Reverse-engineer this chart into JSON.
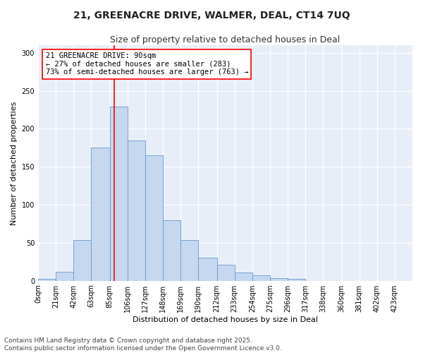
{
  "title_line1": "21, GREENACRE DRIVE, WALMER, DEAL, CT14 7UQ",
  "title_line2": "Size of property relative to detached houses in Deal",
  "xlabel": "Distribution of detached houses by size in Deal",
  "ylabel": "Number of detached properties",
  "bar_values": [
    2,
    12,
    54,
    175,
    229,
    185,
    165,
    80,
    54,
    30,
    21,
    11,
    7,
    3,
    2,
    0,
    0,
    0,
    0,
    0,
    0
  ],
  "bin_edges": [
    0,
    21,
    42,
    63,
    85,
    106,
    127,
    148,
    169,
    190,
    212,
    233,
    254,
    275,
    296,
    317,
    338,
    360,
    381,
    402,
    423,
    444
  ],
  "tick_labels": [
    "0sqm",
    "21sqm",
    "42sqm",
    "63sqm",
    "85sqm",
    "106sqm",
    "127sqm",
    "148sqm",
    "169sqm",
    "190sqm",
    "212sqm",
    "233sqm",
    "254sqm",
    "275sqm",
    "296sqm",
    "317sqm",
    "338sqm",
    "360sqm",
    "381sqm",
    "402sqm",
    "423sqm"
  ],
  "bar_color": "#c5d8f0",
  "bar_edge_color": "#6699cc",
  "vline_color": "red",
  "vline_x": 90,
  "annotation_title": "21 GREENACRE DRIVE: 90sqm",
  "annotation_line2": "← 27% of detached houses are smaller (283)",
  "annotation_line3": "73% of semi-detached houses are larger (763) →",
  "background_color": "#e8eef8",
  "grid_color": "white",
  "yticks": [
    0,
    50,
    100,
    150,
    200,
    250,
    300
  ],
  "ylim": [
    0,
    310
  ],
  "footer_line1": "Contains HM Land Registry data © Crown copyright and database right 2025.",
  "footer_line2": "Contains public sector information licensed under the Open Government Licence v3.0.",
  "title_fontsize": 10,
  "subtitle_fontsize": 9,
  "axis_label_fontsize": 8,
  "tick_fontsize": 7,
  "annotation_fontsize": 7.5,
  "footer_fontsize": 6.5
}
